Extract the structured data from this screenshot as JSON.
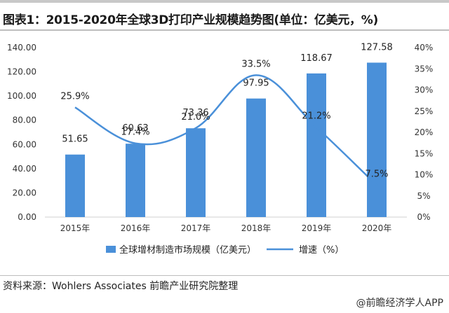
{
  "header": {
    "title": "图表1：2015-2020年全球3D打印产业规模趋势图(单位：亿美元，%)"
  },
  "footer": {
    "source": "资料来源：Wohlers Associates 前瞻产业研究院整理",
    "watermark": "@前瞻经济学人APP"
  },
  "chart_data": {
    "type": "bar",
    "categories": [
      "2015年",
      "2016年",
      "2017年",
      "2018年",
      "2019年",
      "2020年"
    ],
    "series": [
      {
        "name": "全球增材制造市场规模（亿美元）",
        "type": "bar",
        "axis": "left",
        "values": [
          51.65,
          60.63,
          73.36,
          97.95,
          118.67,
          127.58
        ],
        "labels": [
          "51.65",
          "60.63",
          "73.36",
          "97.95",
          "118.67",
          "127.58"
        ],
        "color": "#4a90d9"
      },
      {
        "name": "增速（%）",
        "type": "line",
        "axis": "right",
        "values": [
          25.9,
          17.4,
          21.0,
          33.5,
          21.2,
          7.5
        ],
        "labels": [
          "25.9%",
          "17.4%",
          "21.0%",
          "33.5%",
          "21.2%",
          "7.5%"
        ],
        "color": "#4a90d9"
      }
    ],
    "y_left": {
      "ylim": [
        0,
        140
      ],
      "ticks": [
        "0.00",
        "20.00",
        "40.00",
        "60.00",
        "80.00",
        "100.00",
        "120.00",
        "140.00"
      ]
    },
    "y_right": {
      "ylim": [
        0,
        40
      ],
      "ticks": [
        "0%",
        "5%",
        "10%",
        "15%",
        "20%",
        "25%",
        "30%",
        "35%",
        "40%"
      ]
    },
    "grid": false,
    "legend_position": "bottom"
  },
  "colors": {
    "bar": "#4a90d9",
    "line": "#4a90d9",
    "axis_text": "#333333"
  }
}
